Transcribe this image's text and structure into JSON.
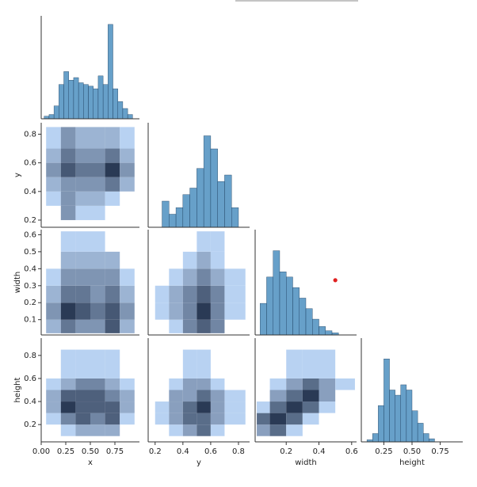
{
  "chart_data": [
    {
      "type": "histogram",
      "color": "#4c8fc0",
      "xlim": [
        0,
        1
      ],
      "ylim": [
        0,
        120
      ],
      "bins": [
        0.03,
        0.08,
        0.13,
        0.18,
        0.23,
        0.28,
        0.33,
        0.38,
        0.43,
        0.48,
        0.53,
        0.58,
        0.63,
        0.68,
        0.73,
        0.78,
        0.83,
        0.88,
        0.93
      ],
      "counts": [
        3,
        5,
        15,
        40,
        55,
        45,
        48,
        42,
        40,
        38,
        35,
        50,
        40,
        110,
        35,
        20,
        12,
        5
      ]
    },
    {
      "type": "hist2d",
      "cmap": [
        "#b8d2f2",
        "#2a3a55"
      ],
      "xlim": [
        0,
        1
      ],
      "ylim": [
        0.15,
        0.88
      ],
      "ylabel": "y",
      "yticks": [
        0.2,
        0.4,
        0.6,
        0.8
      ],
      "xbins": [
        0.05,
        0.2,
        0.35,
        0.5,
        0.65,
        0.8,
        0.95
      ],
      "ybins": [
        0.2,
        0.3,
        0.4,
        0.5,
        0.6,
        0.7,
        0.85
      ],
      "counts": [
        [
          0,
          3,
          1,
          1,
          0,
          0
        ],
        [
          1,
          3,
          2,
          2,
          1,
          0
        ],
        [
          2,
          3,
          3,
          3,
          4,
          2
        ],
        [
          3,
          5,
          4,
          4,
          6,
          3
        ],
        [
          2,
          4,
          3,
          3,
          4,
          2
        ],
        [
          1,
          3,
          2,
          2,
          2,
          1
        ]
      ]
    },
    {
      "type": "histogram",
      "color": "#4c8fc0",
      "xlim": [
        0.15,
        0.88
      ],
      "ylim": [
        0,
        80
      ],
      "bins": [
        0.25,
        0.3,
        0.35,
        0.4,
        0.45,
        0.5,
        0.55,
        0.6,
        0.65,
        0.7,
        0.75,
        0.8
      ],
      "counts": [
        20,
        10,
        15,
        25,
        30,
        45,
        70,
        60,
        35,
        40,
        15
      ]
    },
    {
      "type": "hist2d",
      "cmap": [
        "#b8d2f2",
        "#2a3a55"
      ],
      "xlim": [
        0,
        1
      ],
      "ylim": [
        0.01,
        0.63
      ],
      "ylabel": "width",
      "yticks": [
        0.1,
        0.2,
        0.3,
        0.4,
        0.5,
        0.6
      ],
      "xbins": [
        0.05,
        0.2,
        0.35,
        0.5,
        0.65,
        0.8,
        0.95
      ],
      "ybins": [
        0.02,
        0.1,
        0.2,
        0.3,
        0.4,
        0.5,
        0.62
      ],
      "counts": [
        [
          2,
          4,
          3,
          3,
          5,
          2
        ],
        [
          3,
          6,
          5,
          4,
          5,
          3
        ],
        [
          2,
          4,
          4,
          3,
          4,
          2
        ],
        [
          1,
          3,
          3,
          3,
          3,
          1
        ],
        [
          0,
          2,
          2,
          2,
          2,
          0
        ],
        [
          0,
          1,
          1,
          1,
          0,
          0
        ]
      ]
    },
    {
      "type": "hist2d",
      "cmap": [
        "#b8d2f2",
        "#2a3a55"
      ],
      "xlim": [
        0.15,
        0.88
      ],
      "ylim": [
        0.01,
        0.63
      ],
      "xbins": [
        0.2,
        0.3,
        0.4,
        0.5,
        0.6,
        0.7,
        0.85
      ],
      "ybins": [
        0.02,
        0.1,
        0.2,
        0.3,
        0.4,
        0.5,
        0.62
      ],
      "counts": [
        [
          0,
          1,
          3,
          4,
          3,
          0
        ],
        [
          1,
          2,
          3,
          5,
          3,
          1
        ],
        [
          1,
          2,
          3,
          4,
          3,
          1
        ],
        [
          0,
          1,
          2,
          3,
          2,
          1
        ],
        [
          0,
          0,
          1,
          2,
          1,
          0
        ],
        [
          0,
          0,
          0,
          1,
          1,
          0
        ]
      ]
    },
    {
      "type": "histogram",
      "color": "#4c8fc0",
      "xlim": [
        0.01,
        0.63
      ],
      "ylim": [
        0,
        100
      ],
      "bins": [
        0.04,
        0.08,
        0.12,
        0.16,
        0.2,
        0.24,
        0.28,
        0.32,
        0.36,
        0.4,
        0.44,
        0.48,
        0.52
      ],
      "counts": [
        30,
        55,
        80,
        60,
        55,
        45,
        35,
        25,
        15,
        8,
        4,
        2
      ],
      "highlight": {
        "x": 0.5,
        "y": 52,
        "color": "#e02020"
      }
    },
    {
      "type": "hist2d",
      "cmap": [
        "#b8d2f2",
        "#2a3a55"
      ],
      "xlim": [
        0,
        1
      ],
      "ylim": [
        0.05,
        0.95
      ],
      "xlabel": "x",
      "xticks": [
        {
          "value": 0,
          "label": "0.00"
        },
        0.25,
        {
          "value": 0.5,
          "label": "0.50"
        },
        0.75
      ],
      "ylabel": "height",
      "yticks": [
        0.2,
        0.4,
        0.6,
        0.8
      ],
      "xbins": [
        0.05,
        0.2,
        0.35,
        0.5,
        0.65,
        0.8,
        0.95
      ],
      "ybins": [
        0.1,
        0.2,
        0.3,
        0.4,
        0.5,
        0.6,
        0.85
      ],
      "counts": [
        [
          0,
          1,
          2,
          2,
          2,
          0
        ],
        [
          1,
          3,
          4,
          3,
          4,
          1
        ],
        [
          2,
          5,
          4,
          4,
          4,
          2
        ],
        [
          2,
          4,
          4,
          4,
          3,
          2
        ],
        [
          1,
          2,
          3,
          3,
          2,
          1
        ],
        [
          0,
          1,
          1,
          1,
          1,
          0
        ]
      ]
    },
    {
      "type": "hist2d",
      "cmap": [
        "#b8d2f2",
        "#2a3a55"
      ],
      "xlim": [
        0.15,
        0.88
      ],
      "ylim": [
        0.05,
        0.95
      ],
      "xlabel": "y",
      "xticks": [
        0.2,
        0.4,
        0.6,
        0.8
      ],
      "xbins": [
        0.2,
        0.3,
        0.4,
        0.5,
        0.6,
        0.7,
        0.85
      ],
      "ybins": [
        0.1,
        0.2,
        0.3,
        0.4,
        0.5,
        0.6,
        0.85
      ],
      "counts": [
        [
          0,
          1,
          2,
          3,
          1,
          0
        ],
        [
          1,
          2,
          3,
          3,
          2,
          1
        ],
        [
          1,
          2,
          3,
          4,
          2,
          1
        ],
        [
          0,
          2,
          2,
          3,
          2,
          1
        ],
        [
          0,
          1,
          2,
          2,
          1,
          0
        ],
        [
          0,
          0,
          1,
          1,
          0,
          0
        ]
      ]
    },
    {
      "type": "hist2d",
      "cmap": [
        "#b8d2f2",
        "#2a3a55"
      ],
      "xlim": [
        0.01,
        0.63
      ],
      "ylim": [
        0.05,
        0.95
      ],
      "xlabel": "width",
      "xticks": [
        0.2,
        0.4,
        0.6
      ],
      "xbins": [
        0.02,
        0.1,
        0.2,
        0.3,
        0.4,
        0.5,
        0.62
      ],
      "ybins": [
        0.1,
        0.2,
        0.3,
        0.4,
        0.5,
        0.6,
        0.85
      ],
      "counts": [
        [
          2,
          3,
          1,
          0,
          0,
          0
        ],
        [
          3,
          4,
          3,
          1,
          0,
          0
        ],
        [
          1,
          3,
          4,
          3,
          1,
          0
        ],
        [
          0,
          2,
          3,
          4,
          2,
          0
        ],
        [
          0,
          1,
          2,
          3,
          2,
          1
        ],
        [
          0,
          0,
          1,
          1,
          1,
          0
        ]
      ]
    },
    {
      "type": "histogram",
      "color": "#4c8fc0",
      "xlim": [
        0.05,
        0.95
      ],
      "ylim": [
        0,
        100
      ],
      "xlabel": "height",
      "xticks": [
        0.25,
        {
          "value": 0.5,
          "label": "0.50"
        },
        0.75
      ],
      "bins": [
        0.1,
        0.15,
        0.2,
        0.25,
        0.3,
        0.35,
        0.4,
        0.45,
        0.5,
        0.55,
        0.6,
        0.65,
        0.7
      ],
      "counts": [
        2,
        8,
        35,
        80,
        50,
        45,
        55,
        50,
        30,
        18,
        8,
        3
      ]
    }
  ]
}
